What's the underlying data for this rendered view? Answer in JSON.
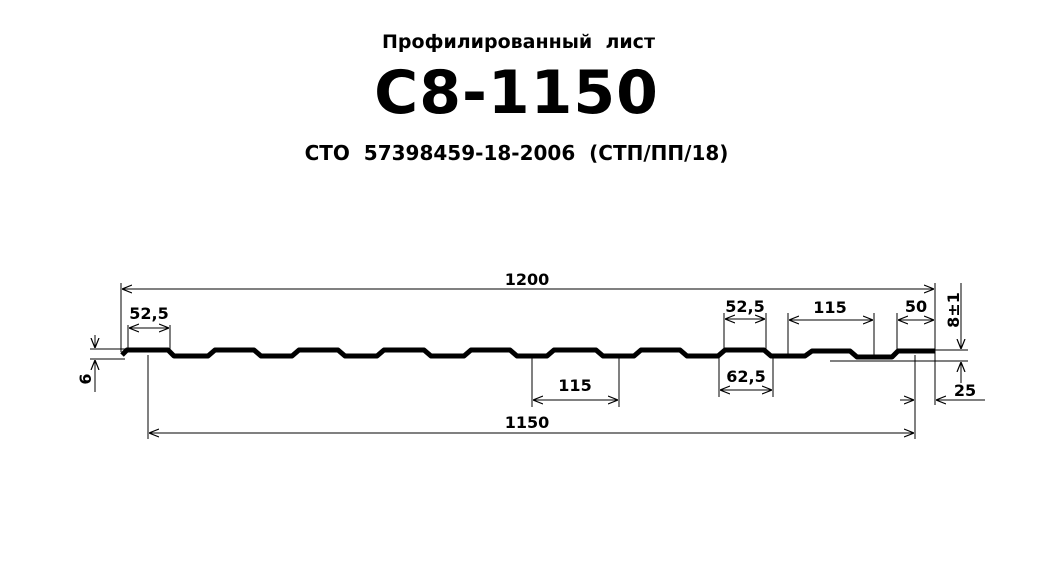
{
  "title": {
    "subtitle": "Профилированный  лист",
    "code": "С8-1150",
    "standard": "СТО  57398459-18-2006  (СТП/ПП/18)"
  },
  "dimensions": {
    "total_width": "1200",
    "working_width": "1150",
    "left_crest": "52,5",
    "right_crest_top": "52,5",
    "rib_pitch_bottom": "115",
    "rib_pitch_top": "115",
    "crest_base": "62,5",
    "edge_flat": "50",
    "height": "8±1",
    "overlap_offset": "25",
    "left_height": "6"
  }
}
